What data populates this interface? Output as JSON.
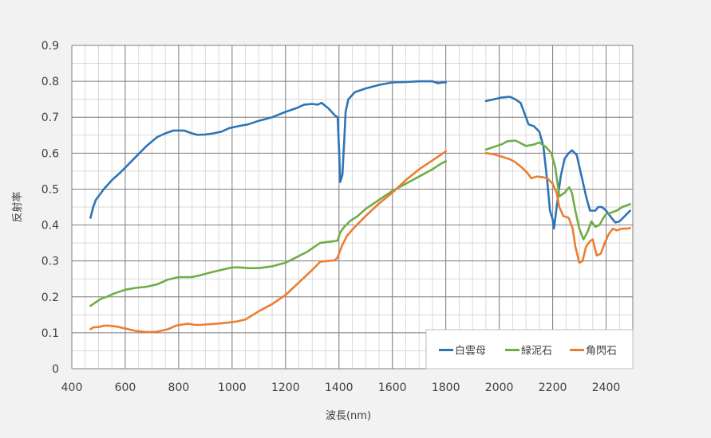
{
  "chart_data": {
    "type": "line",
    "title": "",
    "xlabel": "波長(nm)",
    "ylabel": "反射率",
    "xlim": [
      400,
      2500
    ],
    "ylim": [
      0,
      0.9
    ],
    "x_ticks": [
      400,
      600,
      800,
      1000,
      1200,
      1400,
      1600,
      1800,
      2000,
      2200,
      2400
    ],
    "y_ticks": [
      0,
      0.1,
      0.2,
      0.3,
      0.4,
      0.5,
      0.6,
      0.7,
      0.8,
      0.9
    ],
    "x_tick_labels": [
      "400",
      "600",
      "800",
      "1000",
      "1200",
      "1400",
      "1600",
      "1800",
      "2000",
      "2200",
      "2400"
    ],
    "y_tick_labels": [
      "0",
      "0.1",
      "0.2",
      "0.3",
      "0.4",
      "0.5",
      "0.6",
      "0.7",
      "0.8",
      "0.9"
    ],
    "grid": {
      "major": true,
      "minor": true,
      "x_minor_step": 50,
      "y_minor_step": 0.05
    },
    "legend": {
      "placement": "bottom-right"
    },
    "gaps": [
      [
        1800,
        1950
      ]
    ],
    "series": [
      {
        "name": "白雲母",
        "color": "#2e75b6",
        "segments": [
          [
            [
              470,
              0.42
            ],
            [
              480,
              0.45
            ],
            [
              490,
              0.47
            ],
            [
              510,
              0.49
            ],
            [
              520,
              0.5
            ],
            [
              550,
              0.525
            ],
            [
              580,
              0.545
            ],
            [
              600,
              0.56
            ],
            [
              640,
              0.59
            ],
            [
              680,
              0.62
            ],
            [
              720,
              0.645
            ],
            [
              750,
              0.655
            ],
            [
              780,
              0.663
            ],
            [
              820,
              0.663
            ],
            [
              850,
              0.655
            ],
            [
              870,
              0.651
            ],
            [
              900,
              0.652
            ],
            [
              930,
              0.655
            ],
            [
              960,
              0.66
            ],
            [
              990,
              0.67
            ],
            [
              1030,
              0.676
            ],
            [
              1060,
              0.68
            ],
            [
              1100,
              0.69
            ],
            [
              1150,
              0.7
            ],
            [
              1200,
              0.715
            ],
            [
              1240,
              0.725
            ],
            [
              1270,
              0.735
            ],
            [
              1300,
              0.737
            ],
            [
              1320,
              0.735
            ],
            [
              1335,
              0.74
            ],
            [
              1360,
              0.725
            ],
            [
              1385,
              0.705
            ],
            [
              1395,
              0.7
            ],
            [
              1400,
              0.615
            ],
            [
              1405,
              0.52
            ],
            [
              1413,
              0.54
            ],
            [
              1420,
              0.64
            ],
            [
              1425,
              0.715
            ],
            [
              1435,
              0.75
            ],
            [
              1460,
              0.77
            ],
            [
              1500,
              0.78
            ],
            [
              1550,
              0.79
            ],
            [
              1600,
              0.797
            ],
            [
              1650,
              0.798
            ],
            [
              1700,
              0.8
            ],
            [
              1750,
              0.8
            ],
            [
              1770,
              0.795
            ],
            [
              1790,
              0.797
            ],
            [
              1800,
              0.797
            ]
          ],
          [
            [
              1950,
              0.745
            ],
            [
              1980,
              0.75
            ],
            [
              2010,
              0.755
            ],
            [
              2040,
              0.757
            ],
            [
              2060,
              0.75
            ],
            [
              2080,
              0.74
            ],
            [
              2100,
              0.7
            ],
            [
              2110,
              0.68
            ],
            [
              2130,
              0.675
            ],
            [
              2150,
              0.66
            ],
            [
              2165,
              0.62
            ],
            [
              2180,
              0.52
            ],
            [
              2190,
              0.44
            ],
            [
              2200,
              0.415
            ],
            [
              2205,
              0.39
            ],
            [
              2215,
              0.45
            ],
            [
              2230,
              0.535
            ],
            [
              2245,
              0.585
            ],
            [
              2260,
              0.6
            ],
            [
              2272,
              0.608
            ],
            [
              2290,
              0.595
            ],
            [
              2310,
              0.53
            ],
            [
              2325,
              0.48
            ],
            [
              2340,
              0.44
            ],
            [
              2360,
              0.44
            ],
            [
              2370,
              0.45
            ],
            [
              2385,
              0.45
            ],
            [
              2400,
              0.44
            ],
            [
              2420,
              0.42
            ],
            [
              2435,
              0.407
            ],
            [
              2450,
              0.41
            ],
            [
              2470,
              0.425
            ],
            [
              2490,
              0.44
            ]
          ]
        ]
      },
      {
        "name": "緑泥石",
        "color": "#70ad47",
        "segments": [
          [
            [
              470,
              0.175
            ],
            [
              490,
              0.185
            ],
            [
              510,
              0.195
            ],
            [
              530,
              0.2
            ],
            [
              560,
              0.21
            ],
            [
              600,
              0.22
            ],
            [
              640,
              0.225
            ],
            [
              680,
              0.228
            ],
            [
              720,
              0.235
            ],
            [
              760,
              0.248
            ],
            [
              800,
              0.255
            ],
            [
              830,
              0.255
            ],
            [
              850,
              0.255
            ],
            [
              880,
              0.26
            ],
            [
              920,
              0.268
            ],
            [
              960,
              0.275
            ],
            [
              1000,
              0.282
            ],
            [
              1030,
              0.282
            ],
            [
              1060,
              0.28
            ],
            [
              1100,
              0.28
            ],
            [
              1150,
              0.285
            ],
            [
              1200,
              0.295
            ],
            [
              1240,
              0.31
            ],
            [
              1280,
              0.325
            ],
            [
              1310,
              0.34
            ],
            [
              1330,
              0.35
            ],
            [
              1350,
              0.352
            ],
            [
              1380,
              0.355
            ],
            [
              1395,
              0.357
            ],
            [
              1405,
              0.38
            ],
            [
              1420,
              0.395
            ],
            [
              1440,
              0.41
            ],
            [
              1470,
              0.425
            ],
            [
              1500,
              0.445
            ],
            [
              1550,
              0.47
            ],
            [
              1600,
              0.495
            ],
            [
              1650,
              0.515
            ],
            [
              1700,
              0.535
            ],
            [
              1750,
              0.555
            ],
            [
              1780,
              0.57
            ],
            [
              1800,
              0.578
            ]
          ],
          [
            [
              1950,
              0.61
            ],
            [
              1970,
              0.615
            ],
            [
              1990,
              0.62
            ],
            [
              2010,
              0.625
            ],
            [
              2030,
              0.633
            ],
            [
              2060,
              0.635
            ],
            [
              2075,
              0.63
            ],
            [
              2100,
              0.62
            ],
            [
              2130,
              0.624
            ],
            [
              2150,
              0.63
            ],
            [
              2175,
              0.617
            ],
            [
              2195,
              0.6
            ],
            [
              2210,
              0.56
            ],
            [
              2225,
              0.48
            ],
            [
              2245,
              0.49
            ],
            [
              2262,
              0.505
            ],
            [
              2272,
              0.49
            ],
            [
              2285,
              0.44
            ],
            [
              2300,
              0.39
            ],
            [
              2315,
              0.36
            ],
            [
              2330,
              0.38
            ],
            [
              2345,
              0.41
            ],
            [
              2360,
              0.395
            ],
            [
              2375,
              0.4
            ],
            [
              2390,
              0.42
            ],
            [
              2400,
              0.43
            ],
            [
              2420,
              0.435
            ],
            [
              2440,
              0.44
            ],
            [
              2460,
              0.45
            ],
            [
              2490,
              0.458
            ]
          ]
        ]
      },
      {
        "name": "角閃石",
        "color": "#ed7d31",
        "segments": [
          [
            [
              470,
              0.11
            ],
            [
              480,
              0.115
            ],
            [
              500,
              0.116
            ],
            [
              520,
              0.12
            ],
            [
              540,
              0.12
            ],
            [
              570,
              0.117
            ],
            [
              600,
              0.112
            ],
            [
              640,
              0.105
            ],
            [
              680,
              0.102
            ],
            [
              720,
              0.103
            ],
            [
              760,
              0.11
            ],
            [
              790,
              0.12
            ],
            [
              820,
              0.124
            ],
            [
              840,
              0.125
            ],
            [
              860,
              0.122
            ],
            [
              880,
              0.122
            ],
            [
              900,
              0.123
            ],
            [
              940,
              0.125
            ],
            [
              980,
              0.128
            ],
            [
              1020,
              0.132
            ],
            [
              1050,
              0.137
            ],
            [
              1100,
              0.16
            ],
            [
              1150,
              0.18
            ],
            [
              1200,
              0.205
            ],
            [
              1250,
              0.24
            ],
            [
              1300,
              0.275
            ],
            [
              1330,
              0.298
            ],
            [
              1360,
              0.3
            ],
            [
              1385,
              0.302
            ],
            [
              1395,
              0.31
            ],
            [
              1410,
              0.34
            ],
            [
              1430,
              0.37
            ],
            [
              1460,
              0.395
            ],
            [
              1500,
              0.425
            ],
            [
              1550,
              0.46
            ],
            [
              1600,
              0.49
            ],
            [
              1650,
              0.525
            ],
            [
              1700,
              0.555
            ],
            [
              1750,
              0.58
            ],
            [
              1780,
              0.595
            ],
            [
              1800,
              0.605
            ]
          ],
          [
            [
              1950,
              0.6
            ],
            [
              1980,
              0.597
            ],
            [
              2010,
              0.59
            ],
            [
              2040,
              0.583
            ],
            [
              2060,
              0.575
            ],
            [
              2085,
              0.56
            ],
            [
              2105,
              0.545
            ],
            [
              2120,
              0.53
            ],
            [
              2140,
              0.535
            ],
            [
              2165,
              0.533
            ],
            [
              2180,
              0.53
            ],
            [
              2200,
              0.515
            ],
            [
              2215,
              0.49
            ],
            [
              2225,
              0.45
            ],
            [
              2240,
              0.425
            ],
            [
              2260,
              0.42
            ],
            [
              2275,
              0.39
            ],
            [
              2285,
              0.34
            ],
            [
              2300,
              0.295
            ],
            [
              2312,
              0.3
            ],
            [
              2325,
              0.34
            ],
            [
              2340,
              0.355
            ],
            [
              2350,
              0.36
            ],
            [
              2365,
              0.315
            ],
            [
              2380,
              0.32
            ],
            [
              2395,
              0.35
            ],
            [
              2410,
              0.375
            ],
            [
              2425,
              0.39
            ],
            [
              2440,
              0.385
            ],
            [
              2460,
              0.39
            ],
            [
              2480,
              0.39
            ],
            [
              2490,
              0.392
            ]
          ]
        ]
      }
    ]
  }
}
